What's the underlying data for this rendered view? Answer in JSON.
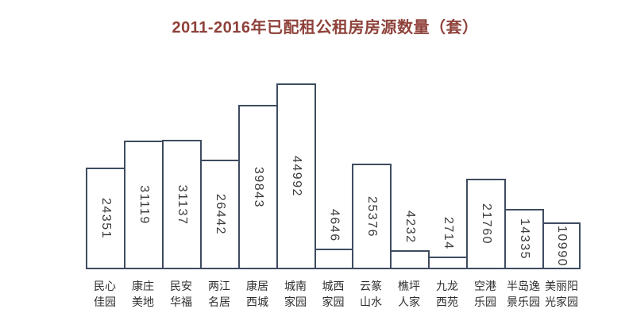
{
  "page": {
    "background": "#ffffff"
  },
  "title": {
    "text": "2011-2016年已配租公租房房源数量（套）"
  },
  "chart_data": {
    "type": "bar",
    "title": "2011-2016年已配租公租房房源数量（套）",
    "categories": [
      "民心佳园",
      "康庄美地",
      "民安华福",
      "两江名居",
      "康居西城",
      "城南家园",
      "城西家园",
      "云篆山水",
      "樵坪人家",
      "九龙西苑",
      "空港乐园",
      "半岛逸景乐园",
      "美丽阳光家园"
    ],
    "category_lines": [
      [
        "民心",
        "佳园"
      ],
      [
        "康庄",
        "美地"
      ],
      [
        "民安",
        "华福"
      ],
      [
        "两江",
        "名居"
      ],
      [
        "康居",
        "西城"
      ],
      [
        "城南",
        "家园"
      ],
      [
        "城西",
        "家园"
      ],
      [
        "云篆",
        "山水"
      ],
      [
        "樵坪",
        "人家"
      ],
      [
        "九龙",
        "西苑"
      ],
      [
        "空港",
        "乐园"
      ],
      [
        "半岛逸",
        "景乐园"
      ],
      [
        "美丽阳",
        "光家园"
      ]
    ],
    "values": [
      24351,
      31119,
      31137,
      26442,
      39843,
      44992,
      4646,
      25376,
      4232,
      2714,
      21760,
      14335,
      10990
    ],
    "xlabel": "",
    "ylabel": "",
    "ylim": [
      0,
      45000
    ],
    "grid": false,
    "legend": "none",
    "value_label_style": "rotated 90° clockwise, inside bar; placed above bar when bar is too short",
    "colors": {
      "title": "#8e423a",
      "bar_fill": "#ffffff",
      "bar_border": "#3e4c60",
      "axis_line": "#3e4c60",
      "value_label": "#3d3d3d",
      "category_label": "#303030"
    }
  }
}
